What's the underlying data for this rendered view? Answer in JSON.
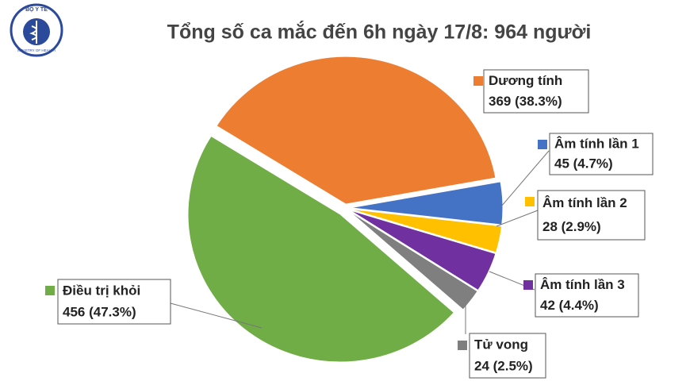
{
  "logo": {
    "top_text": "BỘ Y TẾ",
    "bottom_text": "MINISTRY OF HEALTH"
  },
  "chart_data": {
    "type": "pie",
    "title": "Tổng số ca mắc đến 6h ngày 17/8: 964 người",
    "categories": [
      "Dương tính",
      "Âm tính lần 1",
      "Âm tính lần 2",
      "Âm tính lần 3",
      "Tử vong",
      "Điều trị khỏi"
    ],
    "values": [
      369,
      45,
      28,
      42,
      24,
      456
    ],
    "value_labels": [
      "369 (38.3%)",
      "45 (4.7%)",
      "28 (2.9%)",
      "42 (4.4%)",
      "24 (2.5%)",
      "456 (47.3%)"
    ],
    "colors": [
      "#ed7d31",
      "#4472c4",
      "#ffc000",
      "#7030a0",
      "#7f7f7f",
      "#70ad47"
    ]
  }
}
